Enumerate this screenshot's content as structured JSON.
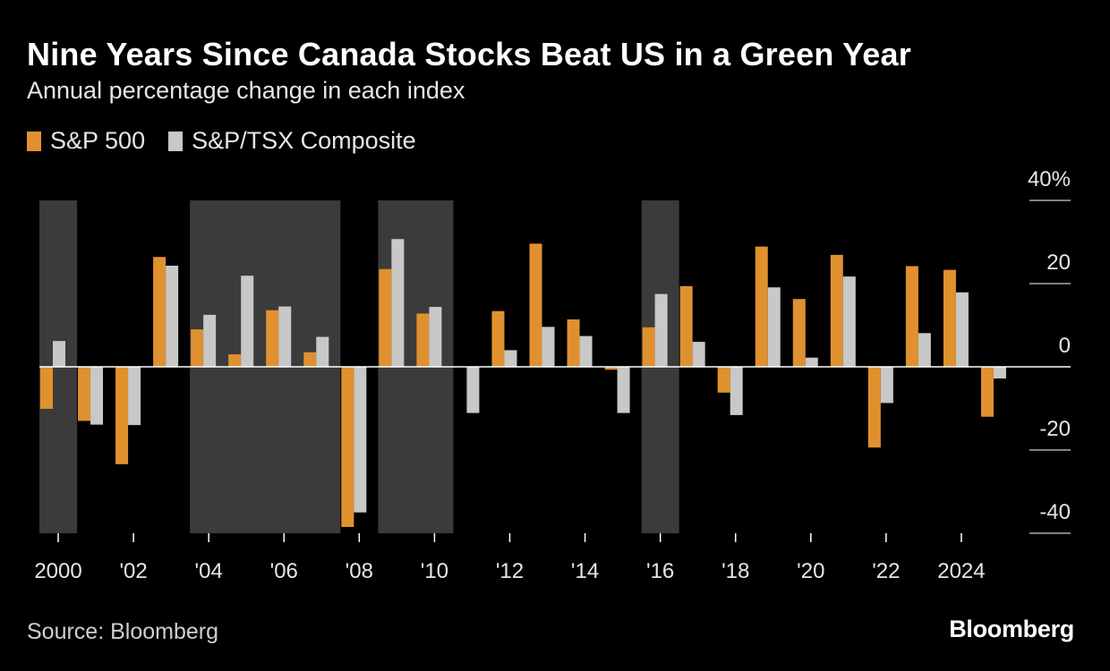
{
  "header": {
    "title": "Nine Years Since Canada Stocks Beat US in a Green Year",
    "subtitle": "Annual percentage change in each index"
  },
  "footer": {
    "source": "Source: Bloomberg",
    "logo": "Bloomberg"
  },
  "chart_data": {
    "type": "bar",
    "title": "Nine Years Since Canada Stocks Beat US in a Green Year",
    "subtitle": "Annual percentage change in each index",
    "xlabel": "",
    "ylabel": "",
    "ylim": [
      -40,
      40
    ],
    "yticks": [
      40,
      20,
      0,
      -20,
      -40
    ],
    "ytick_labels": [
      "40%",
      "20",
      "0",
      "-20",
      "-40"
    ],
    "grid": false,
    "legend_position": "top-left",
    "categories": [
      "2000",
      "2001",
      "2002",
      "2003",
      "2004",
      "2005",
      "2006",
      "2007",
      "2008",
      "2009",
      "2010",
      "2011",
      "2012",
      "2013",
      "2014",
      "2015",
      "2016",
      "2017",
      "2018",
      "2019",
      "2020",
      "2021",
      "2022",
      "2023",
      "2024",
      "2025"
    ],
    "xtick_labels": [
      {
        "year": "2000",
        "label": "2000"
      },
      {
        "year": "2002",
        "label": "'02"
      },
      {
        "year": "2004",
        "label": "'04"
      },
      {
        "year": "2006",
        "label": "'06"
      },
      {
        "year": "2008",
        "label": "'08"
      },
      {
        "year": "2010",
        "label": "'10"
      },
      {
        "year": "2012",
        "label": "'12"
      },
      {
        "year": "2014",
        "label": "'14"
      },
      {
        "year": "2016",
        "label": "'16"
      },
      {
        "year": "2018",
        "label": "'18"
      },
      {
        "year": "2020",
        "label": "'20"
      },
      {
        "year": "2022",
        "label": "'22"
      },
      {
        "year": "2024",
        "label": "2024"
      }
    ],
    "series": [
      {
        "name": "S&P 500",
        "color": "#e0912f",
        "values": [
          -10.1,
          -13.0,
          -23.4,
          26.4,
          9.0,
          3.0,
          13.6,
          3.5,
          -38.5,
          23.5,
          12.8,
          0.0,
          13.4,
          29.6,
          11.4,
          -0.7,
          9.5,
          19.4,
          -6.2,
          28.9,
          16.3,
          26.9,
          -19.4,
          24.2,
          23.3,
          -12.0
        ]
      },
      {
        "name": "S&P/TSX Composite",
        "color": "#c8c8c8",
        "values": [
          6.2,
          -13.9,
          -14.0,
          24.3,
          12.5,
          21.9,
          14.5,
          7.2,
          -35.0,
          30.7,
          14.4,
          -11.1,
          4.0,
          9.6,
          7.4,
          -11.1,
          17.5,
          6.0,
          -11.6,
          19.1,
          2.2,
          21.7,
          -8.7,
          8.1,
          17.9,
          -2.8
        ]
      }
    ],
    "shaded_periods": [
      {
        "start": "2000",
        "end": "2000"
      },
      {
        "start": "2004",
        "end": "2007"
      },
      {
        "start": "2009",
        "end": "2010"
      },
      {
        "start": "2016",
        "end": "2016"
      }
    ],
    "shade_color": "#3b3b3b"
  }
}
